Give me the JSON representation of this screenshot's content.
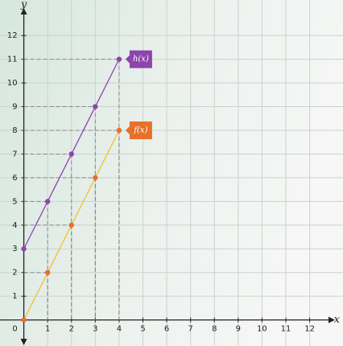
{
  "chart_data": {
    "type": "line",
    "x_label": "x",
    "y_label": "y",
    "x": [
      0,
      1,
      2,
      3,
      4
    ],
    "series": [
      {
        "name": "h(x)",
        "color": "#8e44ad",
        "line_color": "#8e44ad",
        "values": [
          3,
          5,
          7,
          9,
          11
        ]
      },
      {
        "name": "f(x)",
        "color": "#e8702a",
        "line_color": "#f2c12e",
        "values": [
          0,
          2,
          4,
          6,
          8
        ]
      }
    ],
    "xlim": [
      -1,
      13.4
    ],
    "ylim": [
      -1.1,
      13.5
    ],
    "xticks": [
      0,
      1,
      2,
      3,
      4,
      5,
      6,
      7,
      8,
      9,
      10,
      11,
      12
    ],
    "yticks": [
      1,
      2,
      3,
      4,
      5,
      6,
      7,
      8,
      9,
      10,
      11,
      12
    ],
    "grid": true,
    "guides": true
  }
}
